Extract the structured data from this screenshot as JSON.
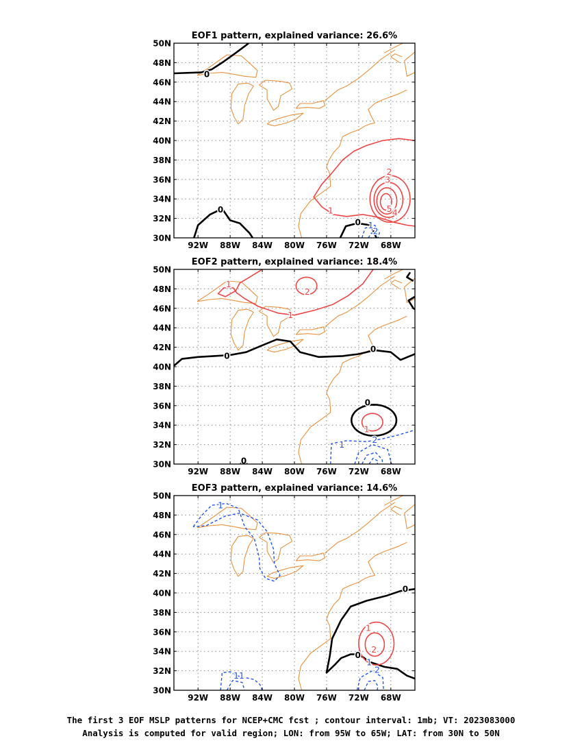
{
  "colors": {
    "coast": "#e8913e",
    "positive": "#ee4444",
    "negative": "#2255ee",
    "zero": "#000000",
    "grid": "#888888"
  },
  "axes": {
    "lon_ticks": [
      "92W",
      "88W",
      "84W",
      "80W",
      "76W",
      "72W",
      "68W"
    ],
    "lat_ticks": [
      "30N",
      "32N",
      "34N",
      "36N",
      "38N",
      "40N",
      "42N",
      "44N",
      "46N",
      "48N",
      "50N"
    ]
  },
  "panels": [
    {
      "title": "EOF1 pattern, explained variance: 26.6%",
      "labels": [
        {
          "text": "0",
          "lon": -89.2,
          "lat": 32.9,
          "kind": "zero"
        },
        {
          "text": "0",
          "lon": -90.9,
          "lat": 46.8,
          "kind": "zero"
        },
        {
          "text": "0",
          "lon": -72.1,
          "lat": 31.6,
          "kind": "zero"
        },
        {
          "text": "1",
          "lon": -75.5,
          "lat": 32.8,
          "kind": "positive"
        },
        {
          "text": "2",
          "lon": -68.2,
          "lat": 36.8,
          "kind": "positive"
        },
        {
          "text": "3",
          "lon": -68.4,
          "lat": 36.0,
          "kind": "positive"
        },
        {
          "text": "5",
          "lon": -68.2,
          "lat": 33.0,
          "kind": "positive"
        },
        {
          "text": "4",
          "lon": -67.5,
          "lat": 32.6,
          "kind": "positive"
        },
        {
          "text": "1",
          "lon": -70.5,
          "lat": 31.3,
          "kind": "negative"
        },
        {
          "text": "2",
          "lon": -69.9,
          "lat": 30.7,
          "kind": "negative"
        }
      ]
    },
    {
      "title": "EOF2 pattern, explained variance: 18.4%",
      "labels": [
        {
          "text": "1",
          "lon": -88.2,
          "lat": 48.5,
          "kind": "positive"
        },
        {
          "text": "2",
          "lon": -78.4,
          "lat": 47.7,
          "kind": "positive"
        },
        {
          "text": "1",
          "lon": -80.5,
          "lat": 45.3,
          "kind": "positive"
        },
        {
          "text": "0",
          "lon": -88.4,
          "lat": 41.1,
          "kind": "zero"
        },
        {
          "text": "0",
          "lon": -70.2,
          "lat": 41.8,
          "kind": "zero"
        },
        {
          "text": "0",
          "lon": -70.9,
          "lat": 36.3,
          "kind": "zero"
        },
        {
          "text": "1",
          "lon": -71.0,
          "lat": 33.6,
          "kind": "positive"
        },
        {
          "text": "1",
          "lon": -74.1,
          "lat": 32.0,
          "kind": "negative"
        },
        {
          "text": "2",
          "lon": -70.0,
          "lat": 32.5,
          "kind": "negative"
        },
        {
          "text": "0",
          "lon": -86.3,
          "lat": 30.3,
          "kind": "zero"
        }
      ]
    },
    {
      "title": "EOF3 pattern, explained variance: 14.6%",
      "labels": [
        {
          "text": "1",
          "lon": -89.2,
          "lat": 49.0,
          "kind": "negative"
        },
        {
          "text": "1",
          "lon": -70.8,
          "lat": 36.4,
          "kind": "positive"
        },
        {
          "text": "2",
          "lon": -70.1,
          "lat": 34.2,
          "kind": "positive"
        },
        {
          "text": "0",
          "lon": -66.2,
          "lat": 40.4,
          "kind": "zero"
        },
        {
          "text": "0",
          "lon": -72.1,
          "lat": 33.6,
          "kind": "zero"
        },
        {
          "text": "11",
          "lon": -86.9,
          "lat": 31.5,
          "kind": "negative"
        },
        {
          "text": "1",
          "lon": -70.7,
          "lat": 32.9,
          "kind": "negative"
        },
        {
          "text": "2",
          "lon": -69.7,
          "lat": 32.1,
          "kind": "negative"
        }
      ]
    }
  ],
  "caption": {
    "line1": "The first 3 EOF MSLP patterns for NCEP+CMC fcst ; contour interval: 1mb; VT: 2023083000",
    "line2": "Analysis is computed for valid region; LON: from 95W to 65W; LAT: from 30N to 50N"
  }
}
